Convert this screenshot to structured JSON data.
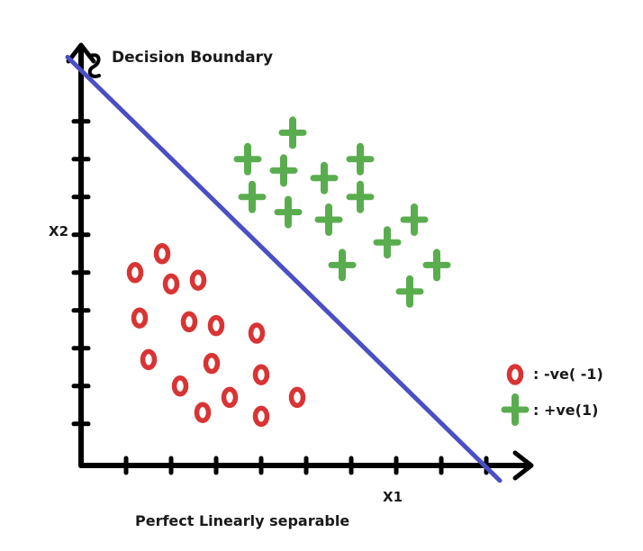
{
  "chart_data": {
    "type": "scatter",
    "title": "",
    "subtitle": "Perfect Linearly separable",
    "xlabel": "X1",
    "ylabel": "X2",
    "boundary_label": "Decision Boundary",
    "boundary_color": "#4a4fc4",
    "axis_color": "#000000",
    "xlim": [
      0,
      10
    ],
    "ylim": [
      0,
      10.5
    ],
    "grid": false,
    "legend_position": "right",
    "decision_boundary": {
      "from": [
        -0.3,
        10.8
      ],
      "to": [
        9.3,
        -0.4
      ]
    },
    "series": [
      {
        "name": "-ve(-1)",
        "legend_label": ": -ve( -1)",
        "marker": "ring",
        "color": "#d93434",
        "points": [
          [
            1.8,
            5.6
          ],
          [
            1.2,
            5.1
          ],
          [
            2.0,
            4.8
          ],
          [
            2.6,
            4.9
          ],
          [
            1.3,
            3.9
          ],
          [
            2.4,
            3.8
          ],
          [
            3.0,
            3.7
          ],
          [
            3.9,
            3.5
          ],
          [
            1.5,
            2.8
          ],
          [
            2.9,
            2.7
          ],
          [
            4.0,
            2.4
          ],
          [
            2.2,
            2.1
          ],
          [
            3.3,
            1.8
          ],
          [
            4.8,
            1.8
          ],
          [
            2.7,
            1.4
          ],
          [
            4.0,
            1.3
          ]
        ]
      },
      {
        "name": "+ve(1)",
        "legend_label": ": +ve(1)",
        "marker": "plus",
        "color": "#5aad4e",
        "points": [
          [
            4.7,
            8.8
          ],
          [
            3.7,
            8.1
          ],
          [
            6.2,
            8.1
          ],
          [
            4.5,
            7.8
          ],
          [
            5.4,
            7.6
          ],
          [
            3.8,
            7.1
          ],
          [
            6.2,
            7.1
          ],
          [
            4.6,
            6.7
          ],
          [
            5.5,
            6.5
          ],
          [
            7.4,
            6.5
          ],
          [
            6.8,
            5.9
          ],
          [
            5.8,
            5.3
          ],
          [
            7.9,
            5.3
          ],
          [
            7.3,
            4.6
          ]
        ]
      }
    ]
  }
}
